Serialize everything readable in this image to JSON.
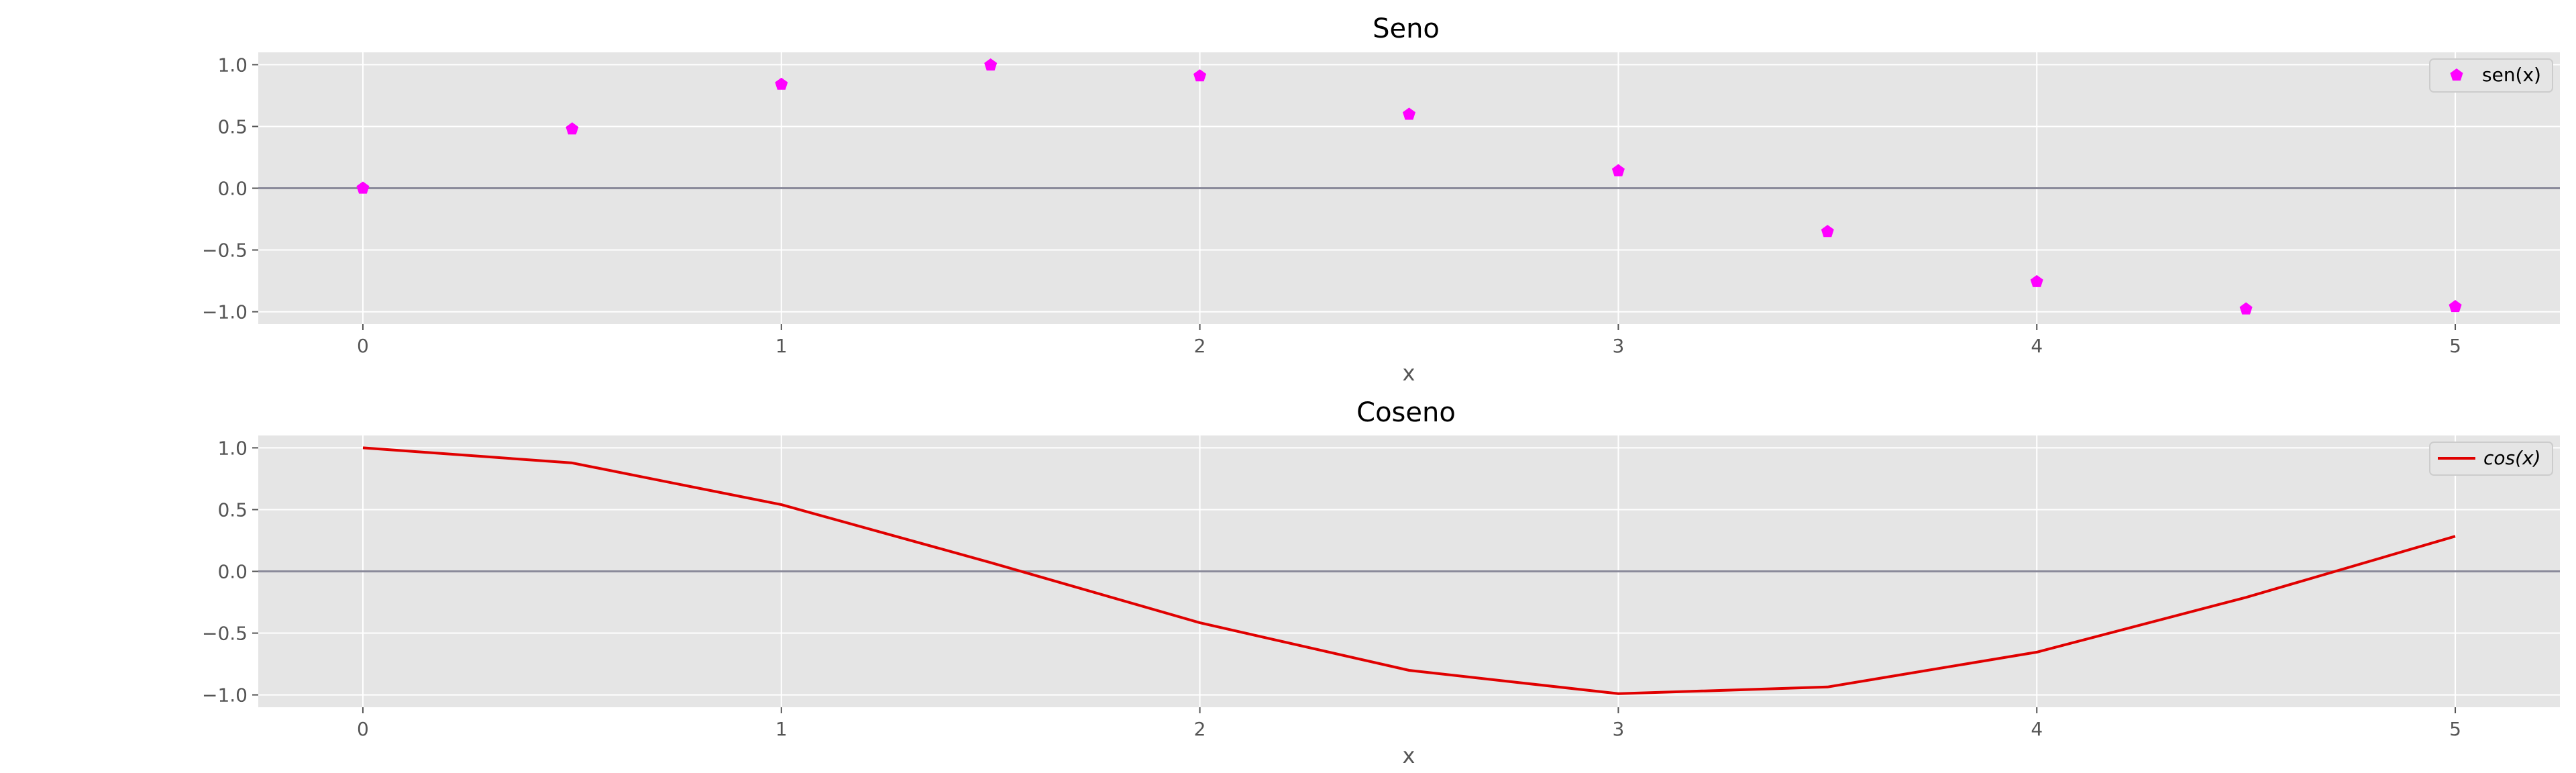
{
  "chart_data": [
    {
      "type": "scatter",
      "title": "Seno",
      "xlabel": "x",
      "ylabel": "",
      "xlim": [
        -0.25,
        5.25
      ],
      "ylim": [
        -1.1,
        1.1
      ],
      "xticks": [
        "0",
        "1",
        "2",
        "3",
        "4",
        "5"
      ],
      "yticks": [
        "1.0",
        "0.5",
        "0.0",
        "−0.5",
        "−1.0"
      ],
      "grid": true,
      "zero_line": true,
      "legend_position": "top-right",
      "marker": "pentagon",
      "color": "#ff00ff",
      "series": [
        {
          "name": "sen(x)",
          "x": [
            0,
            0.5,
            1,
            1.5,
            2,
            2.5,
            3,
            3.5,
            4,
            4.5,
            5
          ],
          "y": [
            0.0,
            0.479,
            0.841,
            0.997,
            0.909,
            0.598,
            0.141,
            -0.351,
            -0.757,
            -0.978,
            -0.959
          ]
        }
      ]
    },
    {
      "type": "line",
      "title": "Coseno",
      "xlabel": "x",
      "ylabel": "",
      "xlim": [
        -0.25,
        5.25
      ],
      "ylim": [
        -1.1,
        1.1
      ],
      "xticks": [
        "0",
        "1",
        "2",
        "3",
        "4",
        "5"
      ],
      "yticks": [
        "1.0",
        "0.5",
        "0.0",
        "−0.5",
        "−1.0"
      ],
      "grid": true,
      "zero_line": true,
      "legend_position": "top-right",
      "color": "#e00000",
      "series": [
        {
          "name": "cos(x)",
          "x": [
            0,
            0.5,
            1,
            1.5,
            2,
            2.5,
            3,
            3.5,
            4,
            4.5,
            5
          ],
          "y": [
            1.0,
            0.878,
            0.54,
            0.071,
            -0.416,
            -0.801,
            -0.99,
            -0.936,
            -0.654,
            -0.211,
            0.284
          ]
        }
      ]
    }
  ]
}
